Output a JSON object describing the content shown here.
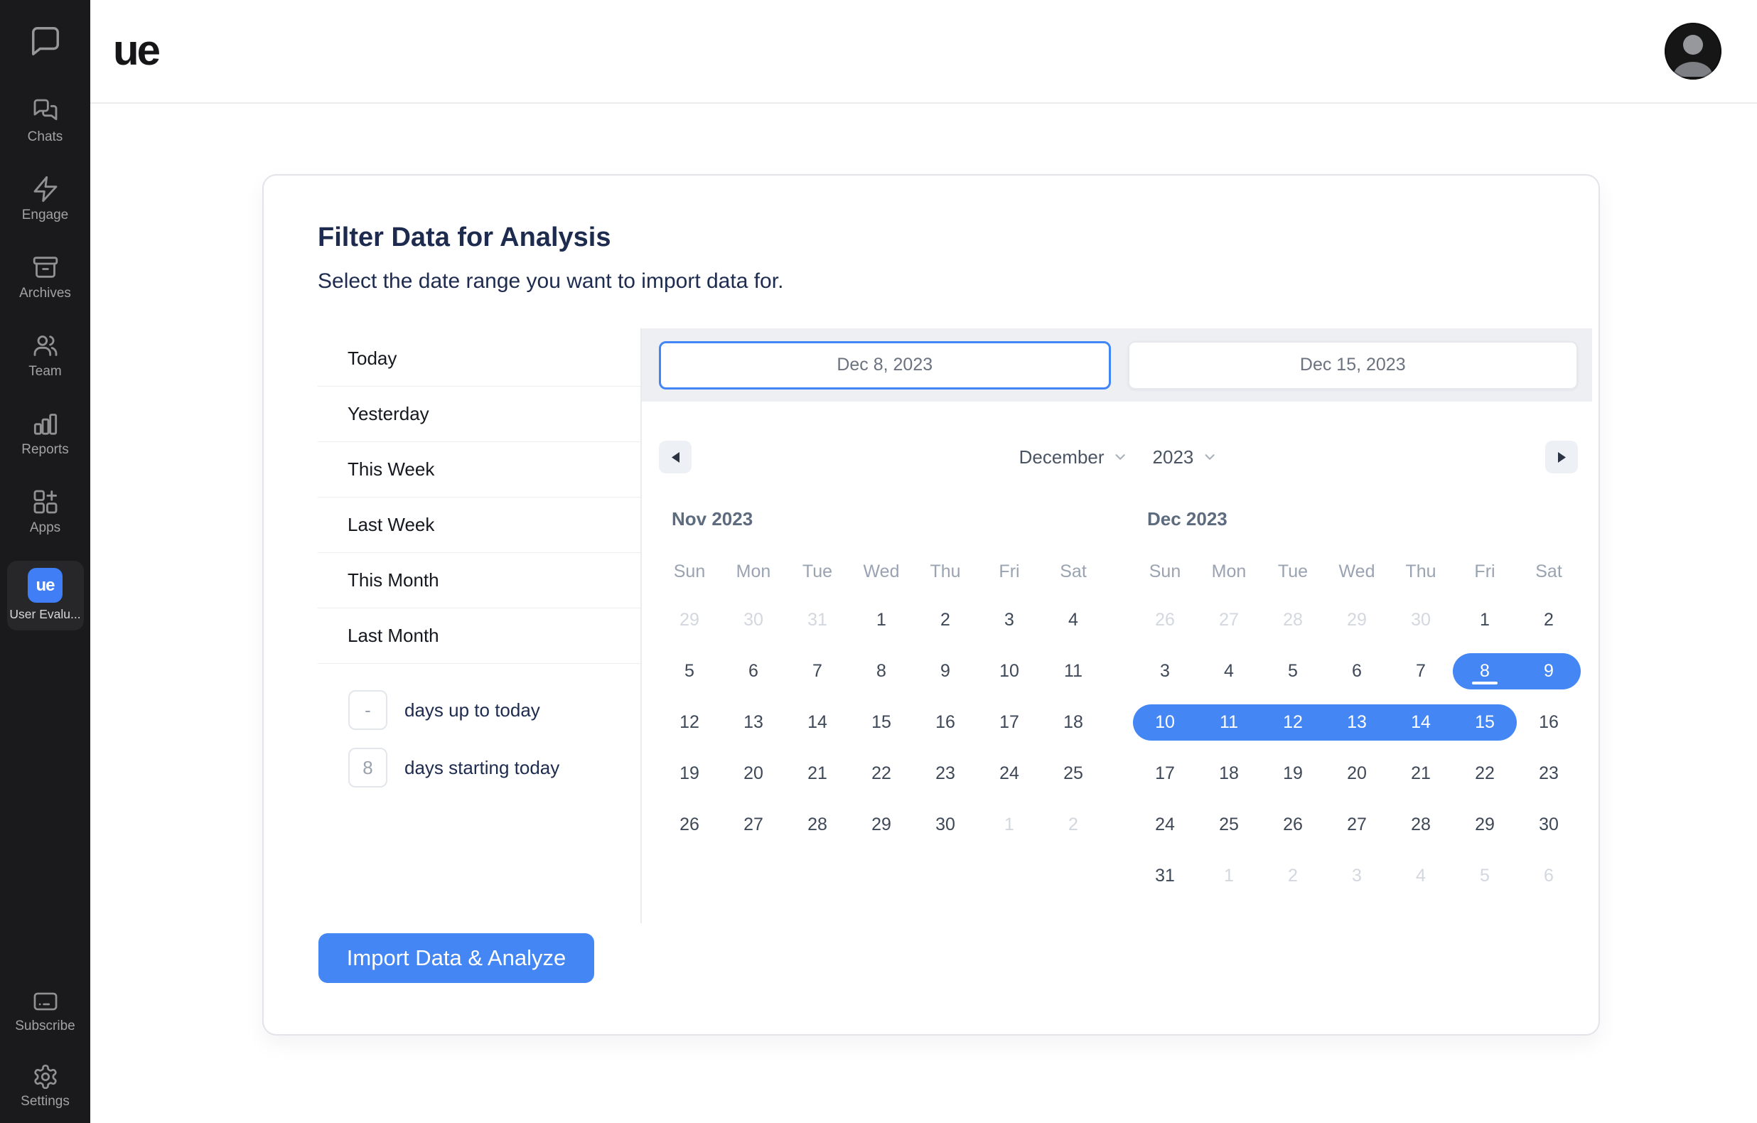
{
  "header": {
    "logo_text": "ue"
  },
  "sidebar": {
    "items": [
      {
        "id": "chats",
        "label": "Chats"
      },
      {
        "id": "engage",
        "label": "Engage"
      },
      {
        "id": "archives",
        "label": "Archives"
      },
      {
        "id": "team",
        "label": "Team"
      },
      {
        "id": "reports",
        "label": "Reports"
      },
      {
        "id": "apps",
        "label": "Apps"
      }
    ],
    "active_app": {
      "icon_text": "ue",
      "label": "User Evalu..."
    },
    "bottom_items": [
      {
        "id": "subscribe",
        "label": "Subscribe"
      },
      {
        "id": "settings",
        "label": "Settings"
      }
    ]
  },
  "filter": {
    "title": "Filter Data for Analysis",
    "subtitle": "Select the date range you want to import data for.",
    "quick_options": [
      "Today",
      "Yesterday",
      "This Week",
      "Last Week",
      "This Month",
      "Last Month"
    ],
    "days_up_to_today": {
      "value": "-",
      "label": "days up to today"
    },
    "days_starting_today": {
      "value": "8",
      "label": "days starting today"
    },
    "import_button_label": "Import Data & Analyze"
  },
  "date_picker": {
    "start_date": "Dec 8, 2023",
    "end_date": "Dec 15, 2023",
    "month_select": "December",
    "year_select": "2023",
    "weekdays": [
      "Sun",
      "Mon",
      "Tue",
      "Wed",
      "Thu",
      "Fri",
      "Sat"
    ],
    "calendars": [
      {
        "title": "Nov 2023",
        "weeks": [
          [
            {
              "d": 29,
              "muted": true
            },
            {
              "d": 30,
              "muted": true
            },
            {
              "d": 31,
              "muted": true
            },
            {
              "d": 1
            },
            {
              "d": 2
            },
            {
              "d": 3
            },
            {
              "d": 4
            }
          ],
          [
            {
              "d": 5
            },
            {
              "d": 6
            },
            {
              "d": 7
            },
            {
              "d": 8
            },
            {
              "d": 9
            },
            {
              "d": 10
            },
            {
              "d": 11
            }
          ],
          [
            {
              "d": 12
            },
            {
              "d": 13
            },
            {
              "d": 14
            },
            {
              "d": 15
            },
            {
              "d": 16
            },
            {
              "d": 17
            },
            {
              "d": 18
            }
          ],
          [
            {
              "d": 19
            },
            {
              "d": 20
            },
            {
              "d": 21
            },
            {
              "d": 22
            },
            {
              "d": 23
            },
            {
              "d": 24
            },
            {
              "d": 25
            }
          ],
          [
            {
              "d": 26
            },
            {
              "d": 27
            },
            {
              "d": 28
            },
            {
              "d": 29
            },
            {
              "d": 30
            },
            {
              "d": 1,
              "muted": true
            },
            {
              "d": 2,
              "muted": true
            }
          ]
        ]
      },
      {
        "title": "Dec 2023",
        "weeks": [
          [
            {
              "d": 26,
              "muted": true
            },
            {
              "d": 27,
              "muted": true
            },
            {
              "d": 28,
              "muted": true
            },
            {
              "d": 29,
              "muted": true
            },
            {
              "d": 30,
              "muted": true
            },
            {
              "d": 1
            },
            {
              "d": 2
            }
          ],
          [
            {
              "d": 3
            },
            {
              "d": 4
            },
            {
              "d": 5
            },
            {
              "d": 6
            },
            {
              "d": 7
            },
            {
              "d": 8,
              "selected": true,
              "round": "left",
              "underline": true
            },
            {
              "d": 9,
              "selected": true,
              "round": "right"
            }
          ],
          [
            {
              "d": 10,
              "selected": true,
              "round": "left"
            },
            {
              "d": 11,
              "selected": true
            },
            {
              "d": 12,
              "selected": true
            },
            {
              "d": 13,
              "selected": true
            },
            {
              "d": 14,
              "selected": true
            },
            {
              "d": 15,
              "selected": true,
              "round": "right"
            },
            {
              "d": 16
            }
          ],
          [
            {
              "d": 17
            },
            {
              "d": 18
            },
            {
              "d": 19
            },
            {
              "d": 20
            },
            {
              "d": 21
            },
            {
              "d": 22
            },
            {
              "d": 23
            }
          ],
          [
            {
              "d": 24
            },
            {
              "d": 25
            },
            {
              "d": 26
            },
            {
              "d": 27
            },
            {
              "d": 28
            },
            {
              "d": 29
            },
            {
              "d": 30
            }
          ],
          [
            {
              "d": 31
            },
            {
              "d": 1,
              "muted": true
            },
            {
              "d": 2,
              "muted": true
            },
            {
              "d": 3,
              "muted": true
            },
            {
              "d": 4,
              "muted": true
            },
            {
              "d": 5,
              "muted": true
            },
            {
              "d": 6,
              "muted": true
            }
          ]
        ]
      }
    ]
  },
  "colors": {
    "accent_blue": "#4486f3",
    "focus_border_blue": "#4285f4",
    "sidebar_bg": "#1a1a1c",
    "app_tile_blue": "#3f7ef5"
  }
}
